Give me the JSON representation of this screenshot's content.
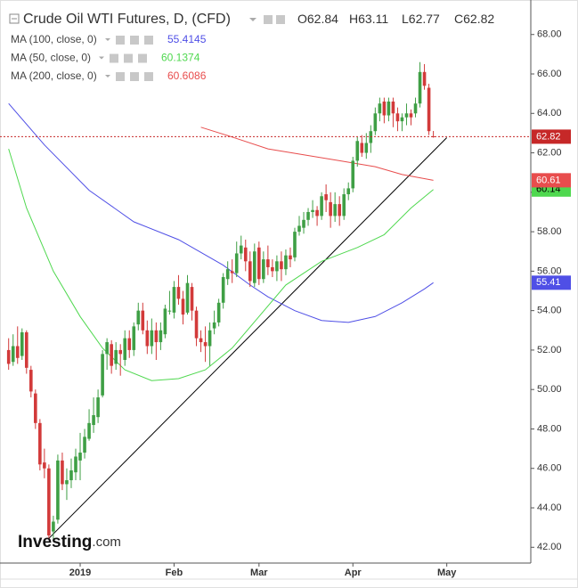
{
  "chart_data": {
    "type": "candlestick",
    "title": "Crude Oil WTI Futures, D, (CFD)",
    "ohlc_labels": [
      "O",
      "H",
      "L",
      "C"
    ],
    "categories": [
      null,
      null,
      null,
      null,
      null,
      null,
      null,
      null,
      null,
      null,
      null,
      null,
      null,
      null,
      null,
      null,
      "2019",
      null,
      null,
      null,
      null,
      null,
      null,
      null,
      null,
      null,
      null,
      null,
      null,
      null,
      null,
      null,
      null,
      null,
      null,
      null,
      null,
      "Feb",
      null,
      null,
      null,
      null,
      null,
      null,
      null,
      null,
      null,
      null,
      null,
      null,
      null,
      null,
      null,
      null,
      null,
      null,
      "Mar",
      null,
      null,
      null,
      null,
      null,
      null,
      null,
      null,
      null,
      null,
      null,
      null,
      null,
      null,
      null,
      null,
      null,
      null,
      null,
      null,
      "Apr",
      null,
      null,
      null,
      null,
      null,
      null,
      null,
      null,
      null,
      null,
      null,
      null,
      null,
      null,
      null,
      null,
      null,
      null,
      null,
      null,
      "May"
    ],
    "open": [
      52.0,
      51.4,
      52.2,
      51.7,
      52.9,
      51.0,
      49.8,
      48.3,
      46.3,
      46.0,
      42.8,
      43.4,
      46.4,
      45.2,
      45.4,
      45.8,
      46.4,
      46.8,
      47.5,
      48.2,
      48.6,
      49.7,
      51.8,
      52.3,
      51.3,
      52.0,
      51.5,
      52.6,
      52.0,
      53.3,
      54.0,
      53.0,
      52.2,
      53.0,
      52.4,
      52.8,
      54.0,
      53.9,
      55.2,
      54.6,
      53.9,
      55.2,
      54.0,
      52.6,
      52.4,
      52.2,
      53.1,
      53.4,
      54.4,
      55.6,
      56.0,
      55.9,
      56.9,
      57.2,
      56.5,
      55.4,
      57.2,
      55.6,
      56.6,
      56.2,
      56.0,
      56.5,
      56.1,
      56.8,
      56.7,
      58.0,
      58.2,
      58.6,
      59.0,
      59.1,
      58.8,
      59.9,
      59.5,
      58.8,
      59.4,
      58.8,
      59.9,
      60.2,
      61.6,
      62.5,
      62.0,
      62.5,
      63.1,
      64.0,
      64.6,
      63.9,
      64.6,
      64.0,
      63.6,
      63.8,
      64.0,
      64.0,
      64.5,
      66.1,
      65.3,
      62.84,
      null,
      null,
      null
    ],
    "high": [
      52.6,
      52.8,
      53.2,
      53.1,
      53.0,
      51.2,
      50.0,
      48.5,
      47.0,
      46.2,
      43.6,
      46.7,
      46.8,
      46.0,
      46.5,
      47.0,
      47.8,
      48.0,
      49.0,
      49.6,
      50.0,
      52.0,
      52.6,
      52.5,
      52.4,
      52.3,
      53.0,
      53.0,
      53.4,
      54.4,
      54.4,
      53.5,
      53.6,
      53.4,
      53.4,
      54.3,
      55.0,
      55.5,
      55.8,
      55.0,
      55.8,
      55.4,
      54.2,
      53.0,
      53.2,
      53.4,
      54.0,
      54.6,
      55.9,
      56.5,
      56.6,
      57.5,
      57.8,
      57.6,
      57.0,
      57.4,
      57.5,
      57.0,
      57.3,
      56.6,
      56.8,
      57.0,
      57.1,
      57.2,
      58.2,
      58.8,
      59.0,
      59.2,
      59.6,
      59.3,
      60.0,
      60.4,
      60.0,
      60.0,
      59.8,
      60.2,
      60.5,
      61.8,
      62.8,
      62.9,
      63.0,
      63.4,
      64.3,
      64.8,
      64.8,
      64.8,
      64.8,
      64.3,
      64.0,
      64.5,
      64.2,
      64.8,
      66.6,
      66.5,
      65.5,
      63.11,
      null,
      null,
      null
    ],
    "low": [
      51.0,
      51.2,
      51.3,
      51.5,
      50.8,
      49.6,
      48.0,
      45.9,
      45.5,
      42.4,
      42.4,
      43.2,
      44.9,
      44.4,
      45.0,
      45.4,
      45.4,
      46.5,
      47.4,
      47.8,
      48.3,
      49.6,
      51.0,
      50.8,
      51.0,
      50.7,
      51.2,
      51.6,
      51.7,
      53.0,
      52.8,
      51.8,
      51.8,
      51.5,
      52.0,
      52.6,
      53.8,
      53.6,
      54.3,
      53.3,
      53.8,
      53.5,
      52.2,
      51.9,
      51.4,
      51.2,
      52.8,
      53.2,
      54.1,
      55.3,
      55.4,
      55.7,
      56.6,
      56.0,
      55.2,
      55.2,
      55.3,
      55.4,
      55.8,
      55.7,
      55.5,
      55.5,
      55.8,
      56.2,
      56.5,
      57.8,
      57.9,
      58.3,
      58.7,
      58.3,
      58.6,
      59.0,
      58.2,
      58.5,
      58.3,
      58.6,
      59.6,
      60.0,
      61.3,
      61.8,
      61.7,
      62.0,
      62.9,
      63.6,
      63.5,
      63.6,
      63.3,
      63.1,
      63.1,
      63.4,
      63.4,
      63.8,
      64.3,
      65.2,
      62.9,
      62.77,
      null,
      null,
      null
    ],
    "close": [
      51.3,
      52.2,
      51.6,
      52.9,
      51.1,
      49.9,
      48.3,
      46.2,
      46.0,
      42.6,
      43.3,
      46.4,
      45.2,
      45.4,
      45.9,
      46.6,
      46.8,
      47.6,
      48.3,
      48.7,
      49.6,
      51.8,
      52.4,
      51.2,
      52.0,
      51.8,
      52.6,
      52.0,
      53.2,
      54.0,
      53.0,
      52.2,
      53.0,
      52.4,
      53.0,
      54.1,
      54.0,
      55.2,
      54.6,
      53.8,
      55.4,
      54.0,
      52.6,
      52.4,
      52.2,
      53.0,
      53.4,
      54.4,
      55.7,
      56.1,
      55.9,
      56.9,
      57.3,
      56.5,
      55.5,
      57.0,
      55.6,
      56.6,
      56.2,
      56.0,
      56.5,
      56.1,
      56.8,
      56.6,
      58.0,
      58.3,
      58.6,
      59.0,
      59.1,
      58.8,
      59.8,
      59.6,
      58.8,
      59.4,
      58.8,
      59.9,
      60.2,
      61.6,
      62.6,
      62.0,
      62.5,
      63.1,
      64.0,
      64.5,
      63.9,
      64.6,
      64.0,
      63.6,
      63.8,
      64.0,
      63.8,
      64.5,
      66.1,
      65.4,
      63.1,
      62.82,
      null,
      null,
      null
    ],
    "up_color": "#3f9f45",
    "down_color": "#d23a3a",
    "price_line_color": "#c62828",
    "studies": [
      {
        "name": "MA (100, close, 0)",
        "color": "#4f4fe6",
        "tag_text_color": "#ffffff",
        "x": [
          0,
          8,
          18,
          28,
          38,
          48,
          54,
          58,
          64,
          70,
          76,
          82,
          88,
          93,
          95
        ],
        "values": [
          64.5,
          62.4,
          60.1,
          58.5,
          57.6,
          56.3,
          55.3,
          54.7,
          54.0,
          53.5,
          53.4,
          53.7,
          54.4,
          55.1,
          55.4145
        ],
        "last_label": "55.41"
      },
      {
        "name": "MA (50, close, 0)",
        "color": "#4fd84f",
        "tag_text_color": "#000000",
        "x": [
          0,
          4,
          10,
          16,
          21,
          26,
          32,
          38,
          44,
          50,
          56,
          62,
          70,
          78,
          84,
          90,
          95
        ],
        "values": [
          62.2,
          59.2,
          56.0,
          53.7,
          52.1,
          51.0,
          50.45,
          50.55,
          51.0,
          52.1,
          53.7,
          55.3,
          56.5,
          57.2,
          57.85,
          59.2,
          60.1374
        ],
        "last_label": "60.14"
      },
      {
        "name": "MA (200, close, 0)",
        "color": "#e84d4d",
        "tag_text_color": "#ffffff",
        "x": [
          43,
          50,
          58,
          66,
          74,
          82,
          88,
          95
        ],
        "values": [
          63.3,
          62.8,
          62.2,
          61.9,
          61.6,
          61.3,
          60.9,
          60.6086
        ],
        "last_label": "60.61"
      }
    ],
    "trend_line": {
      "x": [
        9,
        98
      ],
      "values": [
        42.45,
        62.77
      ],
      "color": "#000000"
    },
    "ylim": [
      41.2,
      69.75
    ],
    "yticks": [
      {
        "value": 42,
        "label": "42.00"
      },
      {
        "value": 44,
        "label": "44.00"
      },
      {
        "value": 46,
        "label": "46.00"
      },
      {
        "value": 48,
        "label": "48.00"
      },
      {
        "value": 50,
        "label": "50.00"
      },
      {
        "value": 52,
        "label": "52.00"
      },
      {
        "value": 54,
        "label": "54.00"
      },
      {
        "value": 56,
        "label": "56.00"
      },
      {
        "value": 58,
        "label": "58.00"
      },
      {
        "value": 60,
        "label": "60.00"
      },
      {
        "value": 62,
        "label": "62.00"
      },
      {
        "value": 64,
        "label": "64.00"
      },
      {
        "value": 66,
        "label": "66.00"
      },
      {
        "value": 68,
        "label": "68.00"
      }
    ],
    "watermark": {
      "brand": "Investing",
      "suffix": ".com"
    }
  }
}
